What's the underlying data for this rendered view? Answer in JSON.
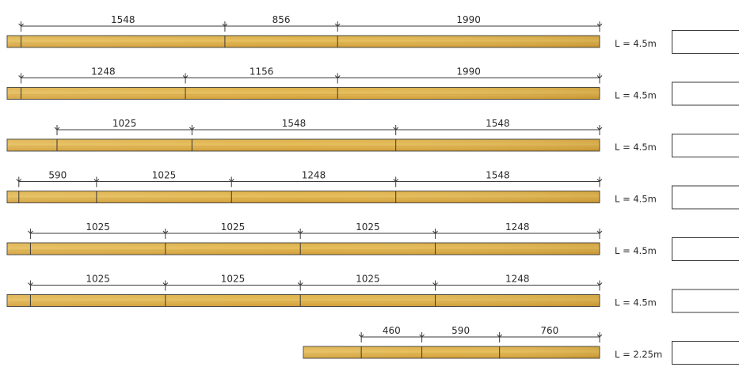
{
  "boards": [
    {
      "segments": [
        1548,
        856,
        1990
      ],
      "length_label": "L = 4.5m",
      "answer": ""
    },
    {
      "segments": [
        1248,
        1156,
        1990
      ],
      "length_label": "L = 4.5m",
      "answer": ""
    },
    {
      "segments": [
        1025,
        1548,
        1548
      ],
      "length_label": "L = 4.5m",
      "answer": ""
    },
    {
      "segments": [
        590,
        1025,
        1248,
        1548
      ],
      "length_label": "L = 4.5m",
      "answer": ""
    },
    {
      "segments": [
        1025,
        1025,
        1025,
        1248
      ],
      "length_label": "L = 4.5m",
      "answer": ""
    },
    {
      "segments": [
        1025,
        1025,
        1025,
        1248
      ],
      "length_label": "L = 4.5m",
      "answer": ""
    },
    {
      "segments": [
        460,
        590,
        760
      ],
      "length_label": "L = 2.25m",
      "answer": ""
    }
  ],
  "colors": {
    "wood_light": "#e8c262",
    "wood_mid": "#d6a53a",
    "wood_dark": "#b8861f",
    "line": "#3a3a3a"
  }
}
